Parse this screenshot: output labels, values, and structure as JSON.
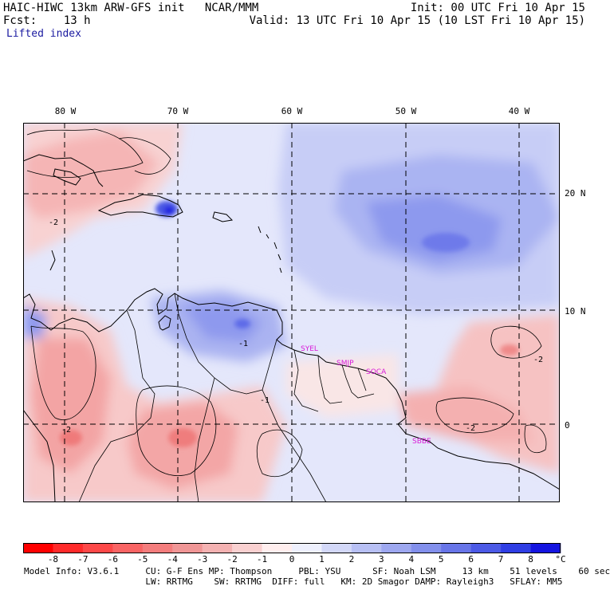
{
  "header": {
    "line1_left": "HAIC-HIWC 13km ARW-GFS init   NCAR/MMM",
    "line1_right": "Init: 00 UTC Fri 10 Apr 15",
    "line2_left": "Fcst:    13 h",
    "line2_right": "Valid: 13 UTC Fri 10 Apr 15 (10 LST Fri 10 Apr 15)",
    "field": "Lifted index"
  },
  "map": {
    "lon_labels": [
      "80 W",
      "70 W",
      "60 W",
      "50 W",
      "40 W"
    ],
    "lat_labels": [
      "20 N",
      "10 N",
      "0"
    ],
    "station_labels": [
      "SYEL",
      "SMJP",
      "SOCA",
      "SBBE"
    ],
    "station_color": "#d81ad8",
    "contour_labels": [
      "-2",
      "-1",
      "-1",
      "-2",
      "-2",
      "-2"
    ],
    "colors": {
      "unstable_strong": "#f05a5a",
      "unstable_mid": "#f49a9a",
      "unstable_weak": "#fad6d6",
      "neutral": "#fff5f5",
      "stable_weak": "#d5daf8",
      "stable_mid": "#a7b2f2",
      "stable_strong": "#6a78e8",
      "stable_max": "#1a1ae0"
    }
  },
  "colorbar": {
    "labels": [
      "-8",
      "-7",
      "-6",
      "-5",
      "-4",
      "-3",
      "-2",
      "-1",
      "0",
      "1",
      "2",
      "3",
      "4",
      "5",
      "6",
      "7",
      "8"
    ],
    "unit": "°C",
    "colors": [
      "#ff0000",
      "#ff2a2a",
      "#fd4848",
      "#f96464",
      "#f47d7d",
      "#f09696",
      "#f4b2b2",
      "#f9d0d0",
      "#ffeeee",
      "#eef0fd",
      "#d3d8f8",
      "#b8c0f4",
      "#9ea8f0",
      "#8390ec",
      "#6875e8",
      "#4c5ae6",
      "#2f3ee4",
      "#1414e0"
    ]
  },
  "footer": {
    "line1": "Model Info: V3.6.1     CU: G-F Ens MP: Thompson     PBL: YSU      SF: Noah LSM     13 km    51 levels    60 sec",
    "line2": "                       LW: RRTMG    SW: RRTMG  DIFF: full   KM: 2D Smagor DAMP: Rayleigh3   SFLAY: MM5"
  }
}
